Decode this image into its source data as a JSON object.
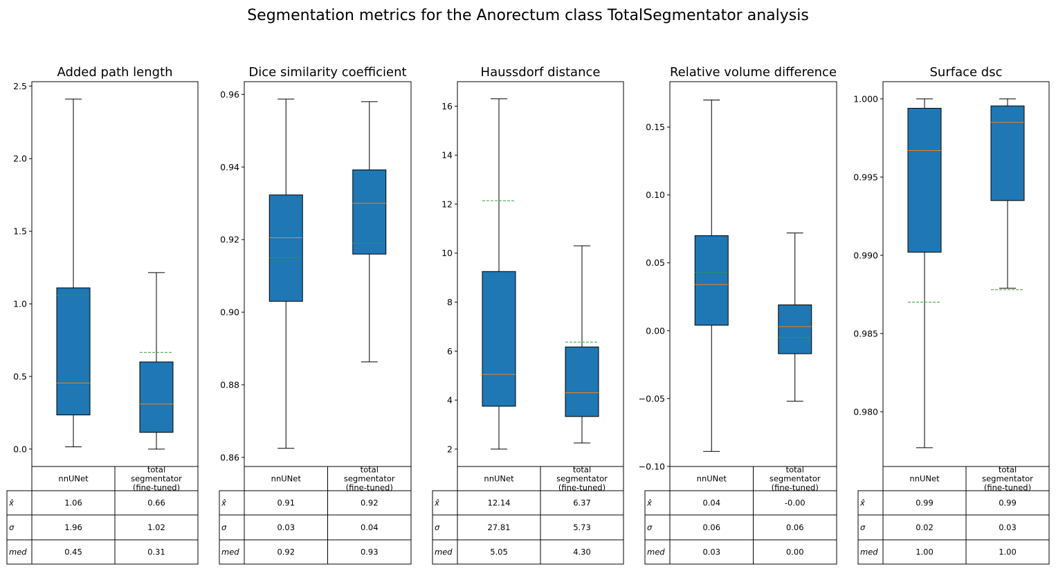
{
  "suptitle": "Segmentation metrics for the Anorectum class TotalSegmentator analysis",
  "colors": {
    "box": "#1f77b4",
    "median": "#ff7f0e",
    "mean": "#2ca02c",
    "line": "#000000"
  },
  "table": {
    "columns": [
      "nnUNet",
      "total\nsegmentator\n(fine-tuned)"
    ],
    "rows": [
      "x̂",
      "σ",
      "med"
    ]
  },
  "chart_data": [
    {
      "type": "box",
      "title": "Added path length",
      "ylim": [
        -0.12,
        2.53
      ],
      "yticks": [
        0.0,
        0.5,
        1.0,
        1.5,
        2.0,
        2.5
      ],
      "ytick_labels": [
        "0.0",
        "0.5",
        "1.0",
        "1.5",
        "2.0",
        "2.5"
      ],
      "series": [
        {
          "whislo": 0.015,
          "q1": 0.235,
          "med": 0.455,
          "q3": 1.11,
          "whishi": 2.41,
          "mean": 1.06
        },
        {
          "whislo": 0.0,
          "q1": 0.115,
          "med": 0.31,
          "q3": 0.6,
          "whishi": 1.215,
          "mean": 0.665
        }
      ],
      "table": [
        [
          "1.06",
          "0.66"
        ],
        [
          "1.96",
          "1.02"
        ],
        [
          "0.45",
          "0.31"
        ]
      ]
    },
    {
      "type": "box",
      "title": "Dice similarity coefficient",
      "ylim": [
        0.8575,
        0.9635
      ],
      "yticks": [
        0.86,
        0.88,
        0.9,
        0.92,
        0.94,
        0.96
      ],
      "ytick_labels": [
        "0.86",
        "0.88",
        "0.90",
        "0.92",
        "0.94",
        "0.96"
      ],
      "series": [
        {
          "whislo": 0.8625,
          "q1": 0.903,
          "med": 0.9205,
          "q3": 0.9323,
          "whishi": 0.9587,
          "mean": 0.915
        },
        {
          "whislo": 0.8863,
          "q1": 0.916,
          "med": 0.93,
          "q3": 0.9392,
          "whishi": 0.958,
          "mean": 0.919
        }
      ],
      "table": [
        [
          "0.91",
          "0.92"
        ],
        [
          "0.03",
          "0.04"
        ],
        [
          "0.92",
          "0.93"
        ]
      ]
    },
    {
      "type": "box",
      "title": "Haussdorf distance",
      "ylim": [
        1.29,
        17.0
      ],
      "yticks": [
        2,
        4,
        6,
        8,
        10,
        12,
        14,
        16
      ],
      "ytick_labels": [
        "2",
        "4",
        "6",
        "8",
        "10",
        "12",
        "14",
        "16"
      ],
      "series": [
        {
          "whislo": 2.0,
          "q1": 3.75,
          "med": 5.05,
          "q3": 9.25,
          "whishi": 16.3,
          "mean": 12.14
        },
        {
          "whislo": 2.25,
          "q1": 3.33,
          "med": 4.3,
          "q3": 6.17,
          "whishi": 10.3,
          "mean": 6.37
        }
      ],
      "table": [
        [
          "12.14",
          "6.37"
        ],
        [
          "27.81",
          "5.73"
        ],
        [
          "5.05",
          "4.30"
        ]
      ]
    },
    {
      "type": "box",
      "title": "Relative volume difference",
      "ylim": [
        -0.1001,
        0.1835
      ],
      "yticks": [
        -0.1,
        -0.05,
        0.0,
        0.05,
        0.1,
        0.15
      ],
      "ytick_labels": [
        "−0.10",
        "−0.05",
        "0.00",
        "0.05",
        "0.10",
        "0.15"
      ],
      "series": [
        {
          "whislo": -0.089,
          "q1": 0.004,
          "med": 0.034,
          "q3": 0.07,
          "whishi": 0.17,
          "mean": 0.043
        },
        {
          "whislo": -0.052,
          "q1": -0.017,
          "med": 0.003,
          "q3": 0.019,
          "whishi": 0.072,
          "mean": -0.005
        }
      ],
      "table": [
        [
          "0.04",
          "-0.00"
        ],
        [
          "0.06",
          "0.06"
        ],
        [
          "0.03",
          "0.00"
        ]
      ]
    },
    {
      "type": "box",
      "title": "Surface dsc",
      "ylim": [
        0.9765,
        1.0011
      ],
      "yticks": [
        0.98,
        0.985,
        0.99,
        0.995,
        1.0
      ],
      "ytick_labels": [
        "0.980",
        "0.985",
        "0.990",
        "0.995",
        "1.000"
      ],
      "series": [
        {
          "whislo": 0.9777,
          "q1": 0.9902,
          "med": 0.9967,
          "q3": 0.9994,
          "whishi": 1.0,
          "mean": 0.987
        },
        {
          "whislo": 0.9879,
          "q1": 0.9935,
          "med": 0.9985,
          "q3": 0.99955,
          "whishi": 1.0,
          "mean": 0.9878
        }
      ],
      "table": [
        [
          "0.99",
          "0.99"
        ],
        [
          "0.02",
          "0.03"
        ],
        [
          "1.00",
          "1.00"
        ]
      ]
    }
  ]
}
